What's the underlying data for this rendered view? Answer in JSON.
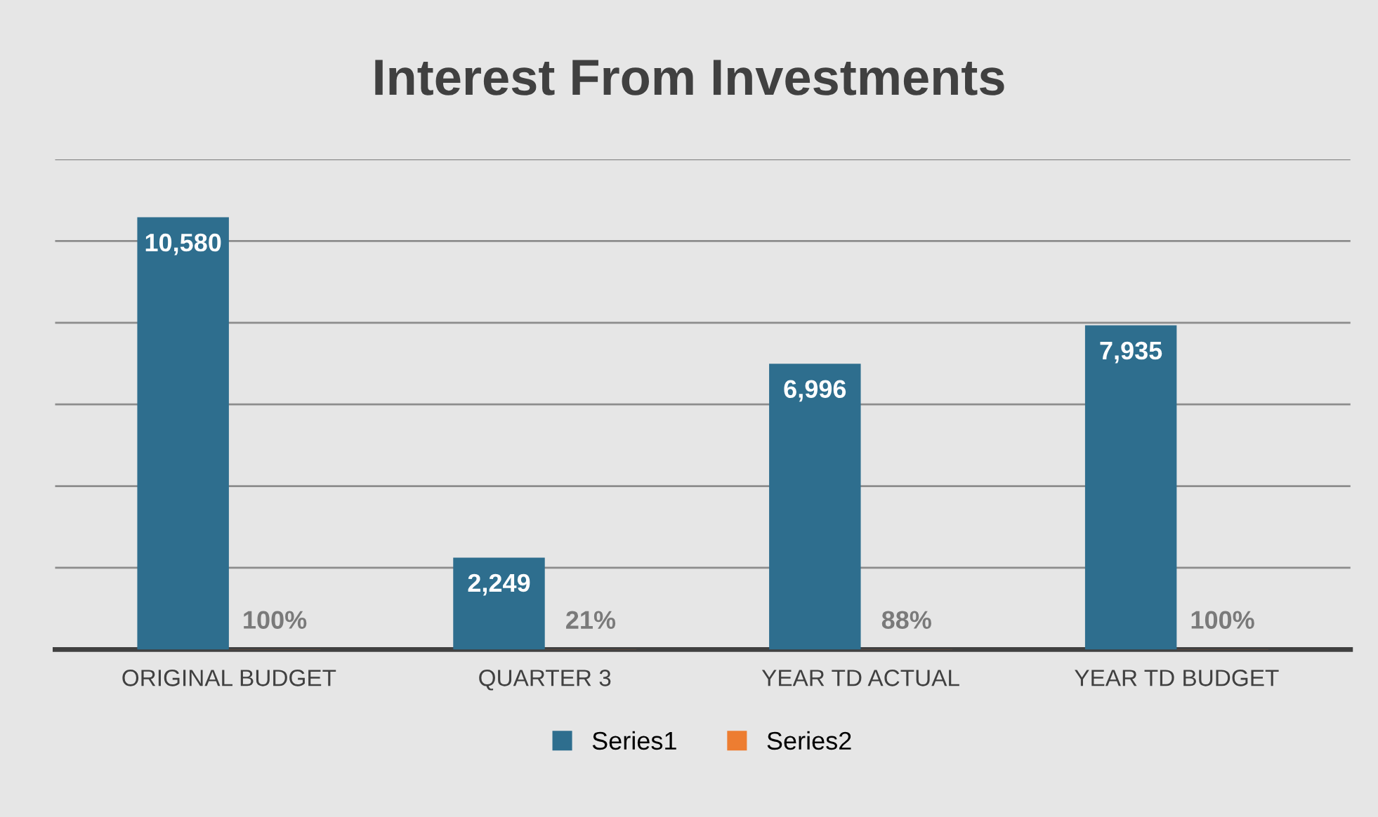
{
  "chart_data": {
    "type": "bar",
    "title": "Interest From Investments",
    "categories": [
      "ORIGINAL BUDGET",
      "QUARTER 3",
      "YEAR TD ACTUAL",
      "YEAR TD BUDGET"
    ],
    "series": [
      {
        "name": "Series1",
        "color": "#2e6e8e",
        "values": [
          10580,
          2249,
          6996,
          7935
        ],
        "value_labels": [
          "10,580",
          "2,249",
          "6,996",
          "7,935"
        ]
      },
      {
        "name": "Series2",
        "color": "#ed7d31",
        "values": [
          1,
          0.21,
          0.88,
          1
        ],
        "value_labels": [
          "100%",
          "21%",
          "88%",
          "100%"
        ]
      }
    ],
    "ylim": [
      0,
      12000
    ],
    "yticks": [
      {
        "value": 0,
        "label": null
      },
      {
        "value": 2000,
        "label": null
      },
      {
        "value": 4000,
        "label": null
      },
      {
        "value": 6000,
        "label": null
      },
      {
        "value": 8000,
        "label": null
      },
      {
        "value": 10000,
        "label": null
      },
      {
        "value": 12000,
        "label": null
      }
    ],
    "tick_labels": "x",
    "grid": "y",
    "legend": "bottom"
  }
}
